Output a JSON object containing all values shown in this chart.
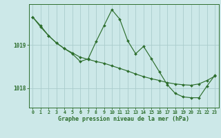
{
  "background_color": "#cce8e8",
  "grid_color": "#aacccc",
  "line_color": "#2d6e2d",
  "marker_color": "#2d6e2d",
  "xlabel": "Graphe pression niveau de la mer (hPa)",
  "xlim": [
    -0.5,
    23.5
  ],
  "ylim": [
    1017.55,
    1019.95
  ],
  "yticks": [
    1018,
    1019
  ],
  "xticks": [
    0,
    1,
    2,
    3,
    4,
    5,
    6,
    7,
    8,
    9,
    10,
    11,
    12,
    13,
    14,
    15,
    16,
    17,
    18,
    19,
    20,
    21,
    22,
    23
  ],
  "s1x": [
    0,
    1,
    2,
    3,
    4,
    5,
    6,
    7,
    8,
    9,
    10,
    11,
    12,
    13,
    14,
    15,
    16,
    17,
    18,
    19,
    20,
    21,
    22,
    23
  ],
  "s1y": [
    1019.65,
    1019.45,
    1019.22,
    1019.05,
    1018.92,
    1018.82,
    1018.72,
    1018.67,
    1018.62,
    1018.58,
    1018.52,
    1018.46,
    1018.4,
    1018.33,
    1018.27,
    1018.22,
    1018.18,
    1018.13,
    1018.1,
    1018.08,
    1018.07,
    1018.1,
    1018.18,
    1018.28
  ],
  "s2x": [
    0,
    1,
    2,
    3,
    4,
    5,
    6,
    7,
    8,
    9,
    10,
    11,
    12,
    13,
    14,
    15,
    16,
    17,
    18,
    19,
    20,
    21,
    22,
    23
  ],
  "s2y": [
    1019.65,
    1019.42,
    1019.22,
    1019.05,
    1018.92,
    1018.8,
    1018.62,
    1018.68,
    1019.08,
    1019.45,
    1019.82,
    1019.6,
    1019.1,
    1018.8,
    1018.97,
    1018.68,
    1018.38,
    1018.08,
    1017.88,
    1017.8,
    1017.78,
    1017.78,
    1018.05,
    1018.3
  ]
}
